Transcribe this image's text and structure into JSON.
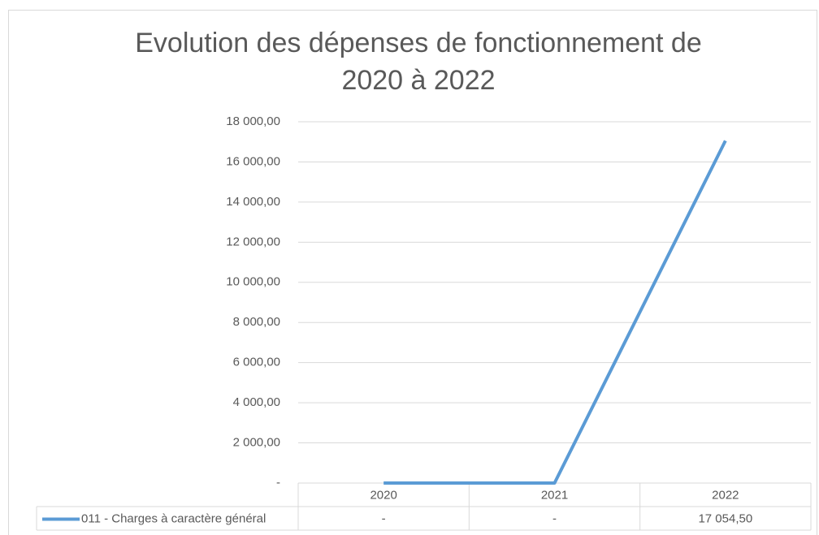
{
  "chart_data": {
    "type": "line",
    "title": "Evolution des dépenses de fonctionnement de 2020 à 2022",
    "categories": [
      "2020",
      "2021",
      "2022"
    ],
    "series": [
      {
        "name": "011 - Charges à caractère général",
        "color": "#5b9bd5",
        "values": [
          0,
          0,
          17054.5
        ],
        "value_labels": [
          "-",
          "-",
          "17 054,50"
        ]
      }
    ],
    "ylim": [
      0,
      18000
    ],
    "yticks": [
      {
        "value": 0,
        "label": "-"
      },
      {
        "value": 2000,
        "label": "2 000,00"
      },
      {
        "value": 4000,
        "label": "4 000,00"
      },
      {
        "value": 6000,
        "label": "6 000,00"
      },
      {
        "value": 8000,
        "label": "8 000,00"
      },
      {
        "value": 10000,
        "label": "10 000,00"
      },
      {
        "value": 12000,
        "label": "12 000,00"
      },
      {
        "value": 14000,
        "label": "14 000,00"
      },
      {
        "value": 16000,
        "label": "16 000,00"
      },
      {
        "value": 18000,
        "label": "18 000,00"
      }
    ],
    "grid": true,
    "data_table": true
  }
}
